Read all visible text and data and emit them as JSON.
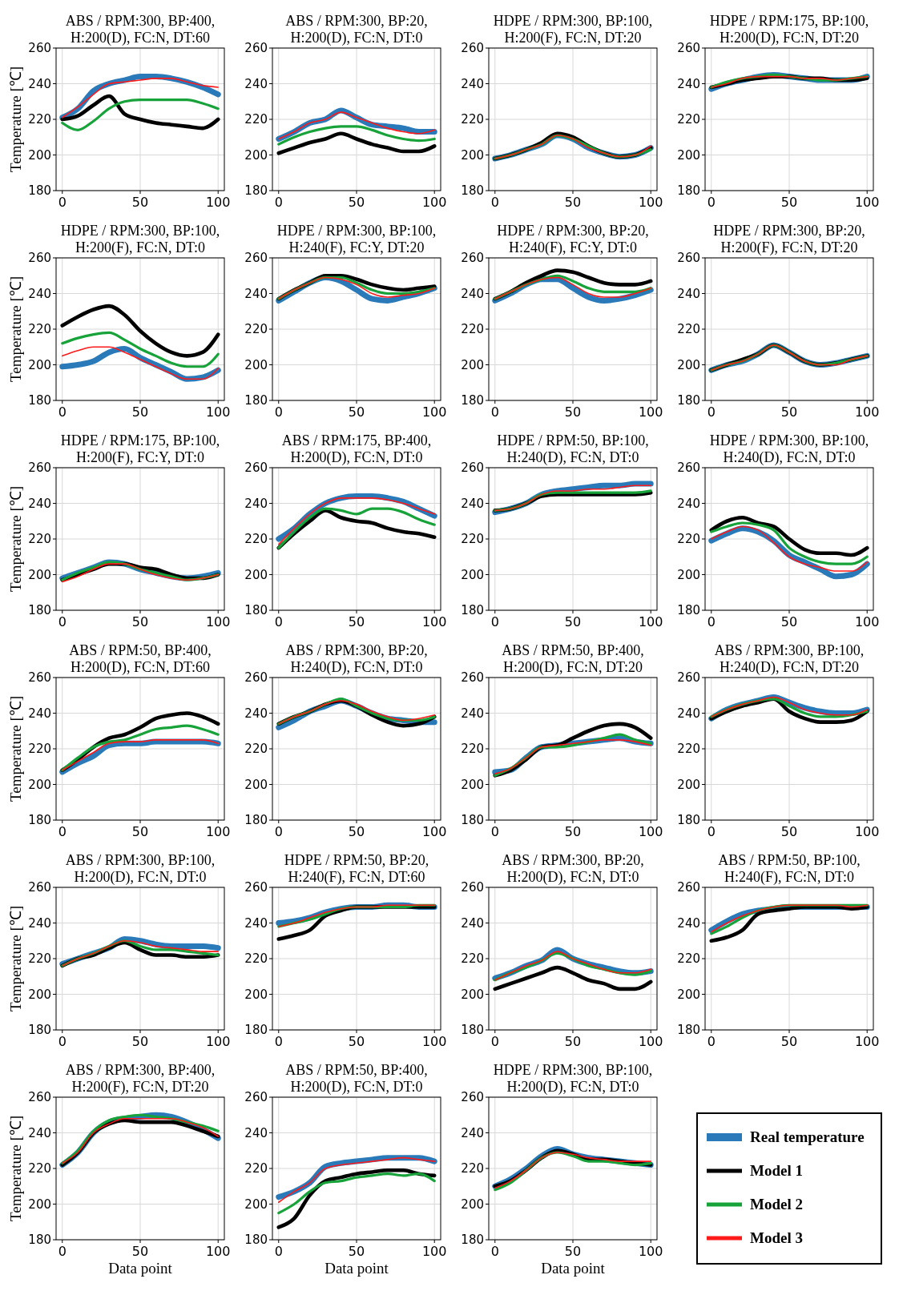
{
  "chart_data": [
    {
      "type": "line",
      "title": "ABS / RPM:300, BP:400, H:200(D), FC:N, DT:60",
      "ylabel": "Temperature [℃]",
      "x": [
        0,
        10,
        20,
        30,
        40,
        50,
        60,
        70,
        80,
        90,
        100
      ],
      "xlim": [
        -4,
        104
      ],
      "ylim": [
        180,
        260
      ],
      "xticks": [
        0,
        50,
        100
      ],
      "yticks": [
        180,
        200,
        220,
        240,
        260
      ],
      "grid": true,
      "legend": false,
      "series": [
        {
          "color": "#2a7ab9",
          "values": [
            221,
            226,
            236,
            240,
            242,
            244,
            244,
            243,
            241,
            238,
            234
          ]
        },
        {
          "color": "#000000",
          "values": [
            220,
            222,
            228,
            233,
            223,
            220,
            218,
            217,
            216,
            215,
            220
          ]
        },
        {
          "color": "#17a33a",
          "values": [
            218,
            214,
            219,
            226,
            230,
            231,
            231,
            231,
            231,
            229,
            226
          ]
        },
        {
          "color": "#ff1a1a",
          "values": [
            221,
            227,
            234,
            240,
            241,
            242,
            243,
            243,
            241,
            239,
            238
          ]
        }
      ]
    },
    {
      "type": "line",
      "title": "ABS / RPM:300, BP:20, H:200(D), FC:N, DT:0",
      "x": [
        0,
        10,
        20,
        30,
        40,
        50,
        60,
        70,
        80,
        90,
        100
      ],
      "xlim": [
        -4,
        104
      ],
      "ylim": [
        180,
        260
      ],
      "xticks": [
        0,
        50,
        100
      ],
      "yticks": [
        180,
        200,
        220,
        240,
        260
      ],
      "grid": true,
      "legend": false,
      "series": [
        {
          "color": "#2a7ab9",
          "values": [
            209,
            213,
            218,
            220,
            225,
            221,
            217,
            216,
            215,
            213,
            213
          ]
        },
        {
          "color": "#000000",
          "values": [
            201,
            204,
            207,
            209,
            212,
            209,
            206,
            204,
            202,
            202,
            205
          ]
        },
        {
          "color": "#17a33a",
          "values": [
            206,
            210,
            213,
            215,
            216,
            216,
            214,
            211,
            209,
            208,
            209
          ]
        },
        {
          "color": "#ff1a1a",
          "values": [
            209,
            213,
            218,
            220,
            224,
            221,
            218,
            215,
            213,
            212,
            214
          ]
        }
      ]
    },
    {
      "type": "line",
      "title": "HDPE / RPM:300, BP:100, H:200(F), FC:N, DT:20",
      "x": [
        0,
        10,
        20,
        30,
        40,
        50,
        60,
        70,
        80,
        90,
        100
      ],
      "xlim": [
        -4,
        104
      ],
      "ylim": [
        180,
        260
      ],
      "xticks": [
        0,
        50,
        100
      ],
      "yticks": [
        180,
        200,
        220,
        240,
        260
      ],
      "grid": true,
      "legend": false,
      "series": [
        {
          "color": "#2a7ab9",
          "values": [
            198,
            200,
            203,
            206,
            211,
            209,
            204,
            201,
            199,
            200,
            204
          ]
        },
        {
          "color": "#000000",
          "values": [
            198,
            200,
            203,
            207,
            212,
            210,
            205,
            201,
            199,
            200,
            204
          ]
        },
        {
          "color": "#17a33a",
          "values": [
            198,
            200,
            203,
            206,
            211,
            209,
            205,
            201,
            199,
            200,
            203
          ]
        },
        {
          "color": "#ff1a1a",
          "values": [
            198,
            200,
            203,
            206,
            211,
            209,
            204,
            201,
            199,
            200,
            205
          ]
        }
      ]
    },
    {
      "type": "line",
      "title": "HDPE / RPM:175, BP:100, H:200(D), FC:N, DT:20",
      "x": [
        0,
        10,
        20,
        30,
        40,
        50,
        60,
        70,
        80,
        90,
        100
      ],
      "xlim": [
        -4,
        104
      ],
      "ylim": [
        180,
        260
      ],
      "xticks": [
        0,
        50,
        100
      ],
      "yticks": [
        180,
        200,
        220,
        240,
        260
      ],
      "grid": true,
      "legend": false,
      "series": [
        {
          "color": "#2a7ab9",
          "values": [
            237,
            240,
            242,
            244,
            245,
            244,
            243,
            242,
            242,
            242,
            244
          ]
        },
        {
          "color": "#000000",
          "values": [
            238,
            240,
            242,
            243,
            244,
            244,
            243,
            243,
            242,
            242,
            243
          ]
        },
        {
          "color": "#17a33a",
          "values": [
            238,
            241,
            243,
            244,
            245,
            244,
            243,
            242,
            242,
            243,
            244
          ]
        },
        {
          "color": "#ff1a1a",
          "values": [
            238,
            240,
            243,
            244,
            244,
            244,
            243,
            243,
            242,
            243,
            244
          ]
        }
      ]
    },
    {
      "type": "line",
      "title": "HDPE / RPM:300, BP:100, H:200(F), FC:N, DT:0",
      "ylabel": "Temperature [℃]",
      "x": [
        0,
        10,
        20,
        30,
        40,
        50,
        60,
        70,
        80,
        90,
        100
      ],
      "xlim": [
        -4,
        104
      ],
      "ylim": [
        180,
        260
      ],
      "xticks": [
        0,
        50,
        100
      ],
      "yticks": [
        180,
        200,
        220,
        240,
        260
      ],
      "grid": true,
      "legend": false,
      "series": [
        {
          "color": "#2a7ab9",
          "values": [
            199,
            200,
            202,
            207,
            209,
            204,
            200,
            196,
            192,
            193,
            197
          ]
        },
        {
          "color": "#000000",
          "values": [
            222,
            227,
            231,
            233,
            228,
            219,
            212,
            207,
            205,
            207,
            217
          ]
        },
        {
          "color": "#17a33a",
          "values": [
            212,
            215,
            217,
            218,
            214,
            209,
            205,
            201,
            199,
            199,
            206
          ]
        },
        {
          "color": "#ff1a1a",
          "values": [
            205,
            208,
            210,
            210,
            207,
            203,
            199,
            195,
            192,
            192,
            198
          ]
        }
      ]
    },
    {
      "type": "line",
      "title": "HDPE / RPM:300, BP:100, H:240(F), FC:Y, DT:20",
      "x": [
        0,
        10,
        20,
        30,
        40,
        50,
        60,
        70,
        80,
        90,
        100
      ],
      "xlim": [
        -4,
        104
      ],
      "ylim": [
        180,
        260
      ],
      "xticks": [
        0,
        50,
        100
      ],
      "yticks": [
        180,
        200,
        220,
        240,
        260
      ],
      "grid": true,
      "legend": false,
      "series": [
        {
          "color": "#2a7ab9",
          "values": [
            236,
            241,
            246,
            249,
            247,
            242,
            237,
            236,
            238,
            240,
            243
          ]
        },
        {
          "color": "#000000",
          "values": [
            237,
            242,
            246,
            250,
            250,
            248,
            245,
            243,
            242,
            243,
            244
          ]
        },
        {
          "color": "#17a33a",
          "values": [
            237,
            242,
            246,
            249,
            249,
            246,
            242,
            240,
            240,
            241,
            243
          ]
        },
        {
          "color": "#ff1a1a",
          "values": [
            237,
            242,
            246,
            249,
            248,
            245,
            240,
            238,
            239,
            240,
            243
          ]
        }
      ]
    },
    {
      "type": "line",
      "title": "HDPE / RPM:300, BP:20, H:240(F), FC:Y, DT:0",
      "x": [
        0,
        10,
        20,
        30,
        40,
        50,
        60,
        70,
        80,
        90,
        100
      ],
      "xlim": [
        -4,
        104
      ],
      "ylim": [
        180,
        260
      ],
      "xticks": [
        0,
        50,
        100
      ],
      "yticks": [
        180,
        200,
        220,
        240,
        260
      ],
      "grid": true,
      "legend": false,
      "series": [
        {
          "color": "#2a7ab9",
          "values": [
            236,
            240,
            245,
            248,
            248,
            243,
            238,
            236,
            237,
            239,
            242
          ]
        },
        {
          "color": "#000000",
          "values": [
            237,
            241,
            246,
            250,
            253,
            252,
            249,
            246,
            245,
            245,
            247
          ]
        },
        {
          "color": "#17a33a",
          "values": [
            237,
            241,
            245,
            248,
            250,
            247,
            243,
            241,
            241,
            241,
            243
          ]
        },
        {
          "color": "#ff1a1a",
          "values": [
            237,
            241,
            245,
            248,
            249,
            245,
            240,
            238,
            238,
            240,
            243
          ]
        }
      ]
    },
    {
      "type": "line",
      "title": "HDPE / RPM:300, BP:20, H:200(F), FC:N, DT:20",
      "x": [
        0,
        10,
        20,
        30,
        40,
        50,
        60,
        70,
        80,
        90,
        100
      ],
      "xlim": [
        -4,
        104
      ],
      "ylim": [
        180,
        260
      ],
      "xticks": [
        0,
        50,
        100
      ],
      "yticks": [
        180,
        200,
        220,
        240,
        260
      ],
      "grid": true,
      "legend": false,
      "series": [
        {
          "color": "#2a7ab9",
          "values": [
            197,
            200,
            202,
            206,
            211,
            207,
            202,
            200,
            201,
            203,
            205
          ]
        },
        {
          "color": "#000000",
          "values": [
            197,
            200,
            203,
            206,
            211,
            207,
            202,
            200,
            201,
            203,
            205
          ]
        },
        {
          "color": "#17a33a",
          "values": [
            197,
            200,
            202,
            206,
            211,
            207,
            202,
            200,
            201,
            203,
            205
          ]
        },
        {
          "color": "#ff1a1a",
          "values": [
            197,
            200,
            202,
            206,
            211,
            207,
            202,
            200,
            200,
            203,
            205
          ]
        }
      ]
    },
    {
      "type": "line",
      "title": "HDPE / RPM:175, BP:100, H:200(F), FC:Y, DT:0",
      "ylabel": "Temperature [℃]",
      "x": [
        0,
        10,
        20,
        30,
        40,
        50,
        60,
        70,
        80,
        90,
        100
      ],
      "xlim": [
        -4,
        104
      ],
      "ylim": [
        180,
        260
      ],
      "xticks": [
        0,
        50,
        100
      ],
      "yticks": [
        180,
        200,
        220,
        240,
        260
      ],
      "grid": true,
      "legend": false,
      "series": [
        {
          "color": "#2a7ab9",
          "values": [
            198,
            201,
            204,
            207,
            206,
            203,
            201,
            199,
            198,
            199,
            201
          ]
        },
        {
          "color": "#000000",
          "values": [
            197,
            200,
            203,
            206,
            206,
            204,
            203,
            200,
            198,
            198,
            200
          ]
        },
        {
          "color": "#17a33a",
          "values": [
            197,
            201,
            204,
            207,
            206,
            203,
            201,
            199,
            197,
            198,
            200
          ]
        },
        {
          "color": "#ff1a1a",
          "values": [
            196,
            199,
            203,
            206,
            206,
            203,
            200,
            198,
            197,
            198,
            200
          ]
        }
      ]
    },
    {
      "type": "line",
      "title": "ABS / RPM:175, BP:400, H:200(D), FC:N, DT:0",
      "x": [
        0,
        10,
        20,
        30,
        40,
        50,
        60,
        70,
        80,
        90,
        100
      ],
      "xlim": [
        -4,
        104
      ],
      "ylim": [
        180,
        260
      ],
      "xticks": [
        0,
        50,
        100
      ],
      "yticks": [
        180,
        200,
        220,
        240,
        260
      ],
      "grid": true,
      "legend": false,
      "series": [
        {
          "color": "#2a7ab9",
          "values": [
            220,
            226,
            234,
            240,
            243,
            244,
            244,
            243,
            241,
            237,
            233
          ]
        },
        {
          "color": "#000000",
          "values": [
            215,
            223,
            230,
            236,
            232,
            230,
            229,
            226,
            224,
            223,
            221
          ]
        },
        {
          "color": "#17a33a",
          "values": [
            215,
            224,
            232,
            237,
            236,
            234,
            237,
            237,
            235,
            231,
            228
          ]
        },
        {
          "color": "#ff1a1a",
          "values": [
            217,
            226,
            234,
            240,
            243,
            243,
            243,
            242,
            240,
            237,
            234
          ]
        }
      ]
    },
    {
      "type": "line",
      "title": "HDPE / RPM:50, BP:100, H:240(D), FC:N, DT:0",
      "x": [
        0,
        10,
        20,
        30,
        40,
        50,
        60,
        70,
        80,
        90,
        100
      ],
      "xlim": [
        -4,
        104
      ],
      "ylim": [
        180,
        260
      ],
      "xticks": [
        0,
        50,
        100
      ],
      "yticks": [
        180,
        200,
        220,
        240,
        260
      ],
      "grid": true,
      "legend": false,
      "series": [
        {
          "color": "#2a7ab9",
          "values": [
            235,
            237,
            240,
            245,
            247,
            248,
            249,
            250,
            250,
            251,
            251
          ]
        },
        {
          "color": "#000000",
          "values": [
            236,
            237,
            240,
            244,
            245,
            245,
            245,
            245,
            245,
            245,
            246
          ]
        },
        {
          "color": "#17a33a",
          "values": [
            236,
            237,
            240,
            245,
            246,
            246,
            246,
            246,
            246,
            246,
            247
          ]
        },
        {
          "color": "#ff1a1a",
          "values": [
            236,
            237,
            240,
            245,
            247,
            247,
            248,
            248,
            249,
            250,
            250
          ]
        }
      ]
    },
    {
      "type": "line",
      "title": "HDPE / RPM:300, BP:100, H:240(D), FC:N, DT:0",
      "x": [
        0,
        10,
        20,
        30,
        40,
        50,
        60,
        70,
        80,
        90,
        100
      ],
      "xlim": [
        -4,
        104
      ],
      "ylim": [
        180,
        260
      ],
      "xticks": [
        0,
        50,
        100
      ],
      "yticks": [
        180,
        200,
        220,
        240,
        260
      ],
      "grid": true,
      "legend": false,
      "series": [
        {
          "color": "#2a7ab9",
          "values": [
            219,
            223,
            226,
            224,
            219,
            211,
            207,
            203,
            199,
            200,
            206
          ]
        },
        {
          "color": "#000000",
          "values": [
            225,
            230,
            232,
            229,
            227,
            220,
            214,
            212,
            212,
            211,
            215
          ]
        },
        {
          "color": "#17a33a",
          "values": [
            224,
            227,
            229,
            228,
            225,
            215,
            210,
            207,
            206,
            206,
            210
          ]
        },
        {
          "color": "#ff1a1a",
          "values": [
            220,
            224,
            227,
            225,
            218,
            210,
            206,
            204,
            202,
            202,
            207
          ]
        }
      ]
    },
    {
      "type": "line",
      "title": "ABS / RPM:50, BP:400, H:200(D), FC:N, DT:60",
      "ylabel": "Temperature [℃]",
      "x": [
        0,
        10,
        20,
        30,
        40,
        50,
        60,
        70,
        80,
        90,
        100
      ],
      "xlim": [
        -4,
        104
      ],
      "ylim": [
        180,
        260
      ],
      "xticks": [
        0,
        50,
        100
      ],
      "yticks": [
        180,
        200,
        220,
        240,
        260
      ],
      "grid": true,
      "legend": false,
      "series": [
        {
          "color": "#2a7ab9",
          "values": [
            207,
            212,
            216,
            222,
            223,
            223,
            224,
            224,
            224,
            224,
            223
          ]
        },
        {
          "color": "#000000",
          "values": [
            208,
            214,
            221,
            226,
            228,
            232,
            237,
            239,
            240,
            238,
            234
          ]
        },
        {
          "color": "#17a33a",
          "values": [
            208,
            215,
            221,
            224,
            225,
            228,
            231,
            232,
            233,
            231,
            228
          ]
        },
        {
          "color": "#ff1a1a",
          "values": [
            208,
            213,
            218,
            223,
            224,
            224,
            225,
            225,
            225,
            225,
            223
          ]
        }
      ]
    },
    {
      "type": "line",
      "title": "ABS / RPM:300, BP:20, H:240(D), FC:N, DT:0",
      "x": [
        0,
        10,
        20,
        30,
        40,
        50,
        60,
        70,
        80,
        90,
        100
      ],
      "xlim": [
        -4,
        104
      ],
      "ylim": [
        180,
        260
      ],
      "xticks": [
        0,
        50,
        100
      ],
      "yticks": [
        180,
        200,
        220,
        240,
        260
      ],
      "grid": true,
      "legend": false,
      "series": [
        {
          "color": "#2a7ab9",
          "values": [
            232,
            236,
            241,
            244,
            247,
            244,
            240,
            237,
            236,
            235,
            235
          ]
        },
        {
          "color": "#000000",
          "values": [
            234,
            238,
            241,
            245,
            247,
            244,
            239,
            235,
            233,
            234,
            238
          ]
        },
        {
          "color": "#17a33a",
          "values": [
            234,
            238,
            241,
            245,
            248,
            244,
            240,
            237,
            236,
            236,
            238
          ]
        },
        {
          "color": "#ff1a1a",
          "values": [
            234,
            238,
            241,
            245,
            247,
            245,
            241,
            238,
            236,
            237,
            239
          ]
        }
      ]
    },
    {
      "type": "line",
      "title": "ABS / RPM:50, BP:400, H:200(D), FC:N, DT:20",
      "x": [
        0,
        10,
        20,
        30,
        40,
        50,
        60,
        70,
        80,
        90,
        100
      ],
      "xlim": [
        -4,
        104
      ],
      "ylim": [
        180,
        260
      ],
      "xticks": [
        0,
        50,
        100
      ],
      "yticks": [
        180,
        200,
        220,
        240,
        260
      ],
      "grid": true,
      "legend": false,
      "series": [
        {
          "color": "#2a7ab9",
          "values": [
            207,
            208,
            215,
            221,
            222,
            223,
            224,
            225,
            226,
            224,
            223
          ]
        },
        {
          "color": "#000000",
          "values": [
            205,
            208,
            214,
            221,
            222,
            226,
            230,
            233,
            234,
            232,
            226
          ]
        },
        {
          "color": "#17a33a",
          "values": [
            205,
            209,
            215,
            221,
            221,
            222,
            224,
            226,
            228,
            225,
            223
          ]
        },
        {
          "color": "#ff1a1a",
          "values": [
            206,
            209,
            215,
            221,
            222,
            223,
            224,
            225,
            225,
            224,
            222
          ]
        }
      ]
    },
    {
      "type": "line",
      "title": "ABS / RPM:300, BP:100, H:240(D), FC:N, DT:20",
      "x": [
        0,
        10,
        20,
        30,
        40,
        50,
        60,
        70,
        80,
        90,
        100
      ],
      "xlim": [
        -4,
        104
      ],
      "ylim": [
        180,
        260
      ],
      "xticks": [
        0,
        50,
        100
      ],
      "yticks": [
        180,
        200,
        220,
        240,
        260
      ],
      "grid": true,
      "legend": false,
      "series": [
        {
          "color": "#2a7ab9",
          "values": [
            237,
            242,
            245,
            247,
            249,
            246,
            243,
            241,
            240,
            240,
            242
          ]
        },
        {
          "color": "#000000",
          "values": [
            237,
            241,
            244,
            246,
            248,
            241,
            237,
            235,
            235,
            236,
            241
          ]
        },
        {
          "color": "#17a33a",
          "values": [
            238,
            242,
            245,
            247,
            248,
            244,
            240,
            238,
            238,
            239,
            241
          ]
        },
        {
          "color": "#ff1a1a",
          "values": [
            238,
            242,
            245,
            247,
            249,
            246,
            242,
            240,
            239,
            239,
            242
          ]
        }
      ]
    },
    {
      "type": "line",
      "title": "ABS / RPM:300, BP:100, H:200(D), FC:N, DT:0",
      "ylabel": "Temperature [℃]",
      "x": [
        0,
        10,
        20,
        30,
        40,
        50,
        60,
        70,
        80,
        90,
        100
      ],
      "xlim": [
        -4,
        104
      ],
      "ylim": [
        180,
        260
      ],
      "xticks": [
        0,
        50,
        100
      ],
      "yticks": [
        180,
        200,
        220,
        240,
        260
      ],
      "grid": true,
      "legend": false,
      "series": [
        {
          "color": "#2a7ab9",
          "values": [
            217,
            220,
            223,
            226,
            231,
            230,
            228,
            227,
            227,
            227,
            226
          ]
        },
        {
          "color": "#000000",
          "values": [
            216,
            220,
            222,
            226,
            229,
            225,
            222,
            222,
            221,
            221,
            222
          ]
        },
        {
          "color": "#17a33a",
          "values": [
            216,
            220,
            223,
            227,
            230,
            227,
            225,
            225,
            224,
            223,
            222
          ]
        },
        {
          "color": "#ff1a1a",
          "values": [
            216,
            220,
            223,
            227,
            230,
            229,
            227,
            226,
            225,
            224,
            224
          ]
        }
      ]
    },
    {
      "type": "line",
      "title": "HDPE / RPM:50, BP:20, H:240(F), FC:N, DT:60",
      "x": [
        0,
        10,
        20,
        30,
        40,
        50,
        60,
        70,
        80,
        90,
        100
      ],
      "xlim": [
        -4,
        104
      ],
      "ylim": [
        180,
        260
      ],
      "xticks": [
        0,
        50,
        100
      ],
      "yticks": [
        180,
        200,
        220,
        240,
        260
      ],
      "grid": true,
      "legend": false,
      "series": [
        {
          "color": "#2a7ab9",
          "values": [
            240,
            241,
            243,
            246,
            248,
            249,
            249,
            250,
            250,
            249,
            249
          ]
        },
        {
          "color": "#000000",
          "values": [
            231,
            233,
            236,
            244,
            247,
            249,
            249,
            249,
            249,
            249,
            249
          ]
        },
        {
          "color": "#17a33a",
          "values": [
            238,
            240,
            242,
            245,
            248,
            249,
            249,
            249,
            249,
            250,
            250
          ]
        },
        {
          "color": "#ff1a1a",
          "values": [
            238,
            240,
            243,
            246,
            248,
            249,
            249,
            250,
            250,
            250,
            250
          ]
        }
      ]
    },
    {
      "type": "line",
      "title": "ABS / RPM:300, BP:20, H:200(D), FC:N, DT:0",
      "x": [
        0,
        10,
        20,
        30,
        40,
        50,
        60,
        70,
        80,
        90,
        100
      ],
      "xlim": [
        -4,
        104
      ],
      "ylim": [
        180,
        260
      ],
      "xticks": [
        0,
        50,
        100
      ],
      "yticks": [
        180,
        200,
        220,
        240,
        260
      ],
      "grid": true,
      "legend": false,
      "series": [
        {
          "color": "#2a7ab9",
          "values": [
            209,
            212,
            216,
            219,
            225,
            220,
            217,
            215,
            213,
            212,
            213
          ]
        },
        {
          "color": "#000000",
          "values": [
            203,
            206,
            209,
            212,
            215,
            212,
            208,
            206,
            203,
            203,
            207
          ]
        },
        {
          "color": "#17a33a",
          "values": [
            208,
            212,
            215,
            219,
            223,
            220,
            216,
            214,
            212,
            211,
            213
          ]
        },
        {
          "color": "#ff1a1a",
          "values": [
            208,
            212,
            216,
            219,
            224,
            220,
            217,
            214,
            212,
            212,
            214
          ]
        }
      ]
    },
    {
      "type": "line",
      "title": "ABS / RPM:50, BP:100, H:240(F), FC:N, DT:0",
      "x": [
        0,
        10,
        20,
        30,
        40,
        50,
        60,
        70,
        80,
        90,
        100
      ],
      "xlim": [
        -4,
        104
      ],
      "ylim": [
        180,
        260
      ],
      "xticks": [
        0,
        50,
        100
      ],
      "yticks": [
        180,
        200,
        220,
        240,
        260
      ],
      "grid": true,
      "legend": false,
      "series": [
        {
          "color": "#2a7ab9",
          "values": [
            236,
            241,
            245,
            247,
            248,
            249,
            249,
            249,
            249,
            249,
            249
          ]
        },
        {
          "color": "#000000",
          "values": [
            230,
            232,
            236,
            245,
            247,
            248,
            249,
            249,
            249,
            248,
            249
          ]
        },
        {
          "color": "#17a33a",
          "values": [
            234,
            238,
            243,
            247,
            249,
            250,
            250,
            250,
            250,
            250,
            250
          ]
        },
        {
          "color": "#ff1a1a",
          "values": [
            235,
            240,
            244,
            247,
            249,
            250,
            250,
            250,
            250,
            249,
            250
          ]
        }
      ]
    },
    {
      "type": "line",
      "title": "ABS / RPM:300, BP:400, H:200(F), FC:N, DT:20",
      "ylabel": "Temperature [℃]",
      "xlabel": "Data point",
      "x": [
        0,
        10,
        20,
        30,
        40,
        50,
        60,
        70,
        80,
        90,
        100
      ],
      "xlim": [
        -4,
        104
      ],
      "ylim": [
        180,
        260
      ],
      "xticks": [
        0,
        50,
        100
      ],
      "yticks": [
        180,
        200,
        220,
        240,
        260
      ],
      "grid": true,
      "legend": false,
      "series": [
        {
          "color": "#2a7ab9",
          "values": [
            222,
            229,
            240,
            246,
            248,
            249,
            250,
            249,
            246,
            242,
            237
          ]
        },
        {
          "color": "#000000",
          "values": [
            222,
            229,
            240,
            245,
            247,
            246,
            246,
            246,
            244,
            241,
            238
          ]
        },
        {
          "color": "#17a33a",
          "values": [
            223,
            230,
            241,
            247,
            249,
            250,
            249,
            248,
            246,
            244,
            241
          ]
        },
        {
          "color": "#ff1a1a",
          "values": [
            223,
            229,
            240,
            245,
            248,
            248,
            248,
            248,
            246,
            243,
            238
          ]
        }
      ]
    },
    {
      "type": "line",
      "title": "ABS / RPM:50, BP:400, H:200(D), FC:N, DT:0",
      "xlabel": "Data point",
      "x": [
        0,
        10,
        20,
        30,
        40,
        50,
        60,
        70,
        80,
        90,
        100
      ],
      "xlim": [
        -4,
        104
      ],
      "ylim": [
        180,
        260
      ],
      "xticks": [
        0,
        50,
        100
      ],
      "yticks": [
        180,
        200,
        220,
        240,
        260
      ],
      "grid": true,
      "legend": false,
      "series": [
        {
          "color": "#2a7ab9",
          "values": [
            204,
            207,
            212,
            221,
            223,
            224,
            225,
            226,
            226,
            226,
            224
          ]
        },
        {
          "color": "#000000",
          "values": [
            187,
            192,
            205,
            213,
            215,
            217,
            218,
            219,
            219,
            217,
            216
          ]
        },
        {
          "color": "#17a33a",
          "values": [
            195,
            200,
            207,
            212,
            213,
            215,
            216,
            217,
            216,
            217,
            213
          ]
        },
        {
          "color": "#ff1a1a",
          "values": [
            201,
            207,
            212,
            220,
            222,
            223,
            224,
            225,
            226,
            225,
            224
          ]
        }
      ]
    },
    {
      "type": "line",
      "title": "HDPE / RPM:300, BP:100, H:200(D), FC:N, DT:0",
      "xlabel": "Data point",
      "x": [
        0,
        10,
        20,
        30,
        40,
        50,
        60,
        70,
        80,
        90,
        100
      ],
      "xlim": [
        -4,
        104
      ],
      "ylim": [
        180,
        260
      ],
      "xticks": [
        0,
        50,
        100
      ],
      "yticks": [
        180,
        200,
        220,
        240,
        260
      ],
      "grid": true,
      "legend": "right",
      "series": [
        {
          "name": "Real temperature",
          "color": "#2a7ab9",
          "values": [
            210,
            214,
            220,
            227,
            231,
            228,
            226,
            225,
            224,
            223,
            222
          ]
        },
        {
          "name": "Model 1",
          "color": "#000000",
          "values": [
            210,
            213,
            219,
            226,
            230,
            228,
            225,
            225,
            224,
            223,
            222
          ]
        },
        {
          "name": "Model 2",
          "color": "#17a33a",
          "values": [
            208,
            212,
            219,
            226,
            229,
            227,
            224,
            224,
            223,
            222,
            223
          ]
        },
        {
          "name": "Model 3",
          "color": "#ff1a1a",
          "values": [
            209,
            213,
            219,
            226,
            229,
            228,
            226,
            225,
            224,
            224,
            224
          ]
        }
      ]
    }
  ]
}
